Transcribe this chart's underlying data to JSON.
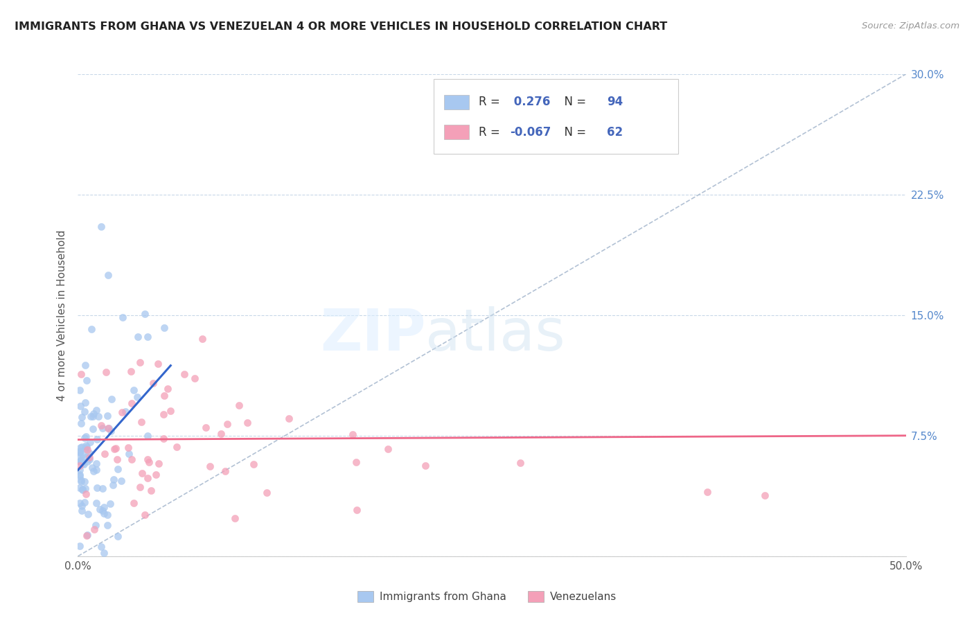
{
  "title": "IMMIGRANTS FROM GHANA VS VENEZUELAN 4 OR MORE VEHICLES IN HOUSEHOLD CORRELATION CHART",
  "source": "Source: ZipAtlas.com",
  "ylabel": "4 or more Vehicles in Household",
  "xlim": [
    0.0,
    0.5
  ],
  "ylim": [
    0.0,
    0.3
  ],
  "xticks": [
    0.0,
    0.1,
    0.2,
    0.3,
    0.4,
    0.5
  ],
  "yticks": [
    0.0,
    0.075,
    0.15,
    0.225,
    0.3
  ],
  "ghana_color": "#a8c8f0",
  "venezuela_color": "#f4a0b8",
  "ghana_line_color": "#3366cc",
  "venezuela_line_color": "#ee6688",
  "dashed_line_color": "#aabbd0",
  "legend_text_color": "#4466bb",
  "ghana_R": 0.276,
  "ghana_N": 94,
  "venezuela_R": -0.067,
  "venezuela_N": 62,
  "legend_label_ghana": "Immigrants from Ghana",
  "legend_label_venezuela": "Venezuelans",
  "background_color": "#ffffff",
  "grid_color": "#c8d8e8",
  "right_tick_color": "#5588cc"
}
